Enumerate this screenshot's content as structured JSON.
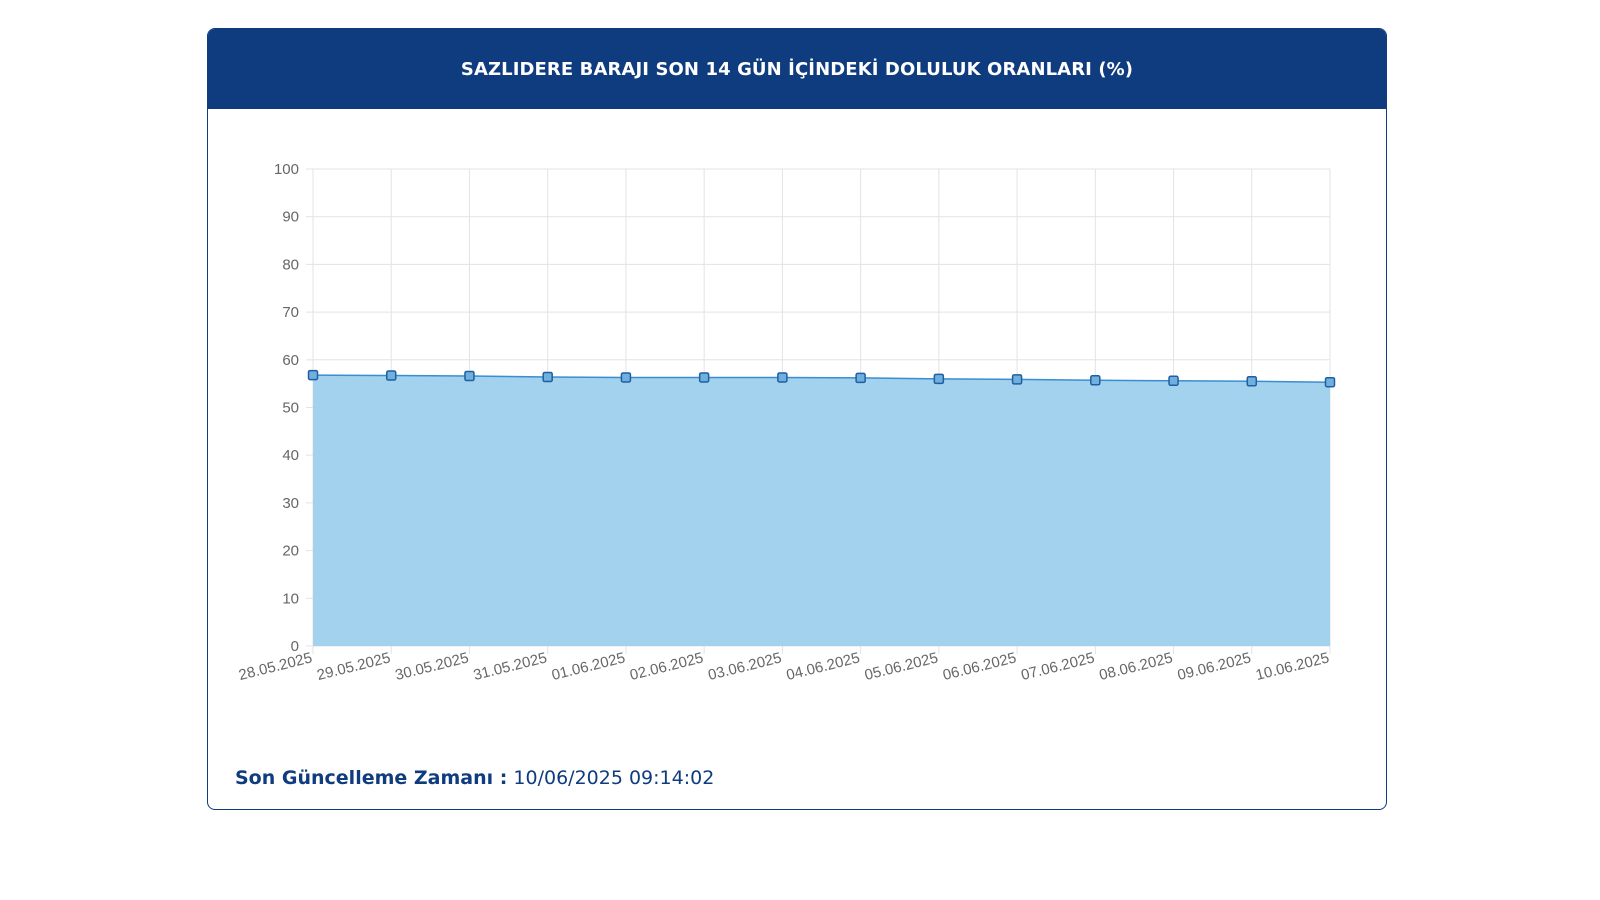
{
  "header": {
    "title": "SAZLIDERE BARAJI SON 14 GÜN İÇİNDEKİ DOLULUK ORANLARI (%)"
  },
  "footer": {
    "label": "Son Güncelleme Zamanı :",
    "value": "10/06/2025 09:14:02"
  },
  "colors": {
    "header_bg": "#0f3b7f",
    "area_fill": "#9dd0ec",
    "line": "#3a8ed0",
    "grid": "#e3e3e3",
    "footer_text": "#0f3b7f"
  },
  "chart_data": {
    "type": "area",
    "categories": [
      "28.05.2025",
      "29.05.2025",
      "30.05.2025",
      "31.05.2025",
      "01.06.2025",
      "02.06.2025",
      "03.06.2025",
      "04.06.2025",
      "05.06.2025",
      "06.06.2025",
      "07.06.2025",
      "08.06.2025",
      "09.06.2025",
      "10.06.2025"
    ],
    "series": [
      {
        "values": [
          56.8,
          56.7,
          56.6,
          56.4,
          56.3,
          56.3,
          56.3,
          56.2,
          56.0,
          55.9,
          55.7,
          55.6,
          55.5,
          55.3
        ]
      }
    ],
    "ylim": [
      0,
      100
    ],
    "yticks": [
      0,
      10,
      20,
      30,
      40,
      50,
      60,
      70,
      80,
      90,
      100
    ],
    "grid": true,
    "legend": "none",
    "markers": "square"
  }
}
